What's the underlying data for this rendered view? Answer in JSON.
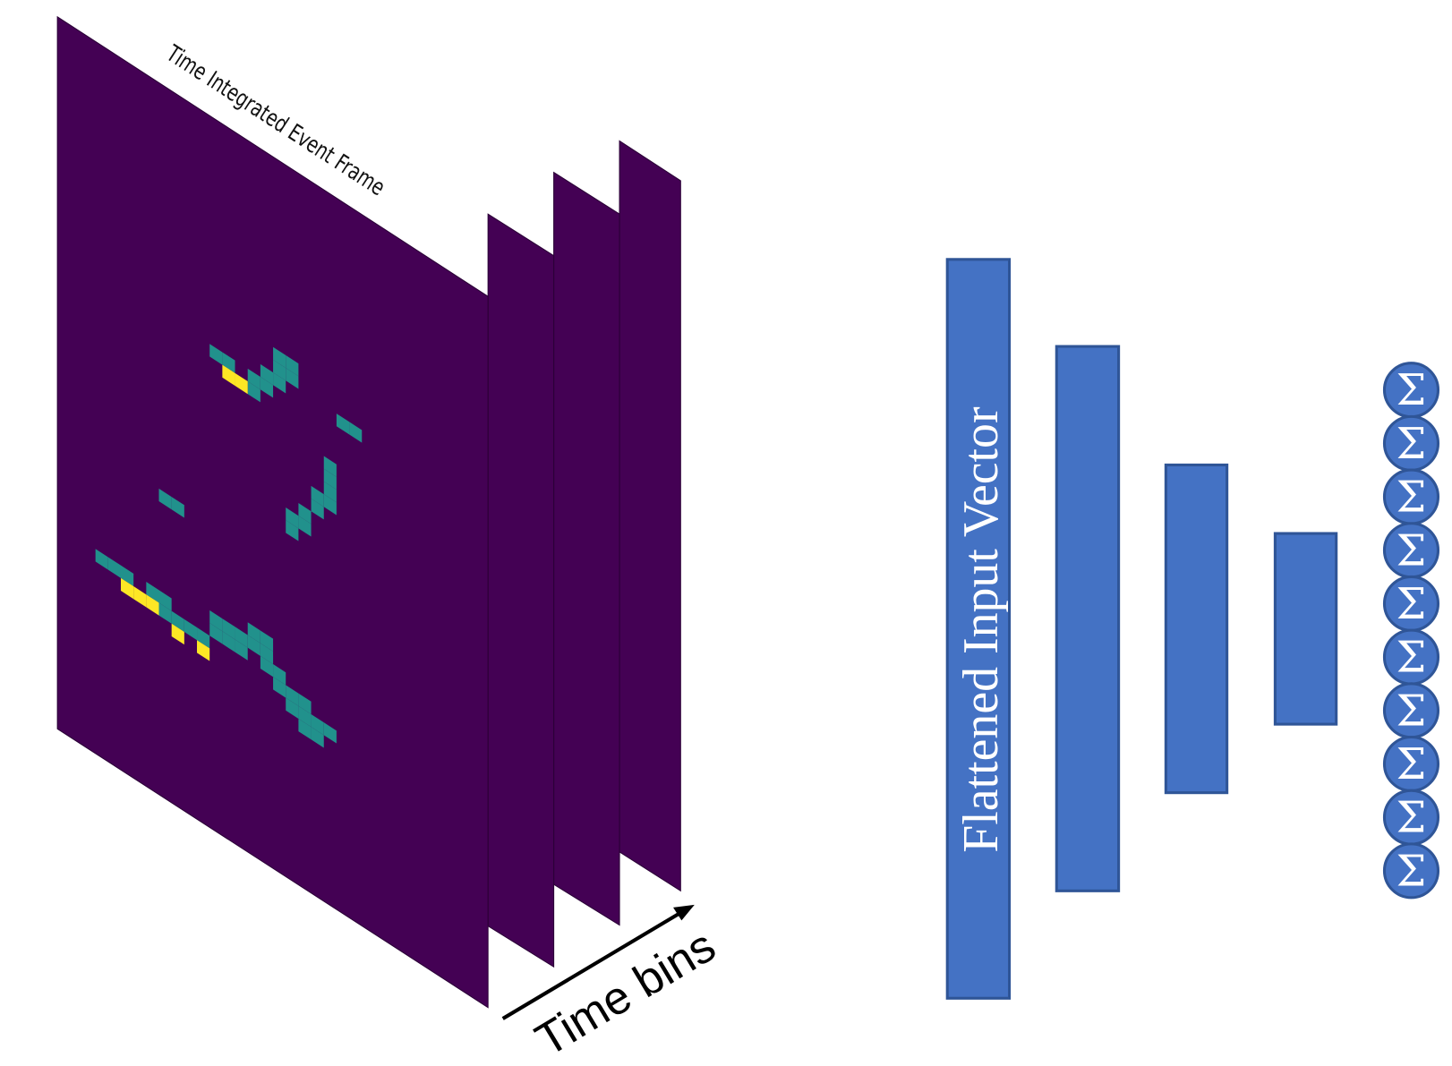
{
  "frame_title": "Time Integrated Event Frame",
  "time_axis_label": "Time bins",
  "input_label": "Flattened Input Vector",
  "output_nodes": [
    "Σ",
    "Σ",
    "Σ",
    "Σ",
    "Σ",
    "Σ",
    "Σ",
    "Σ",
    "Σ",
    "Σ"
  ]
}
